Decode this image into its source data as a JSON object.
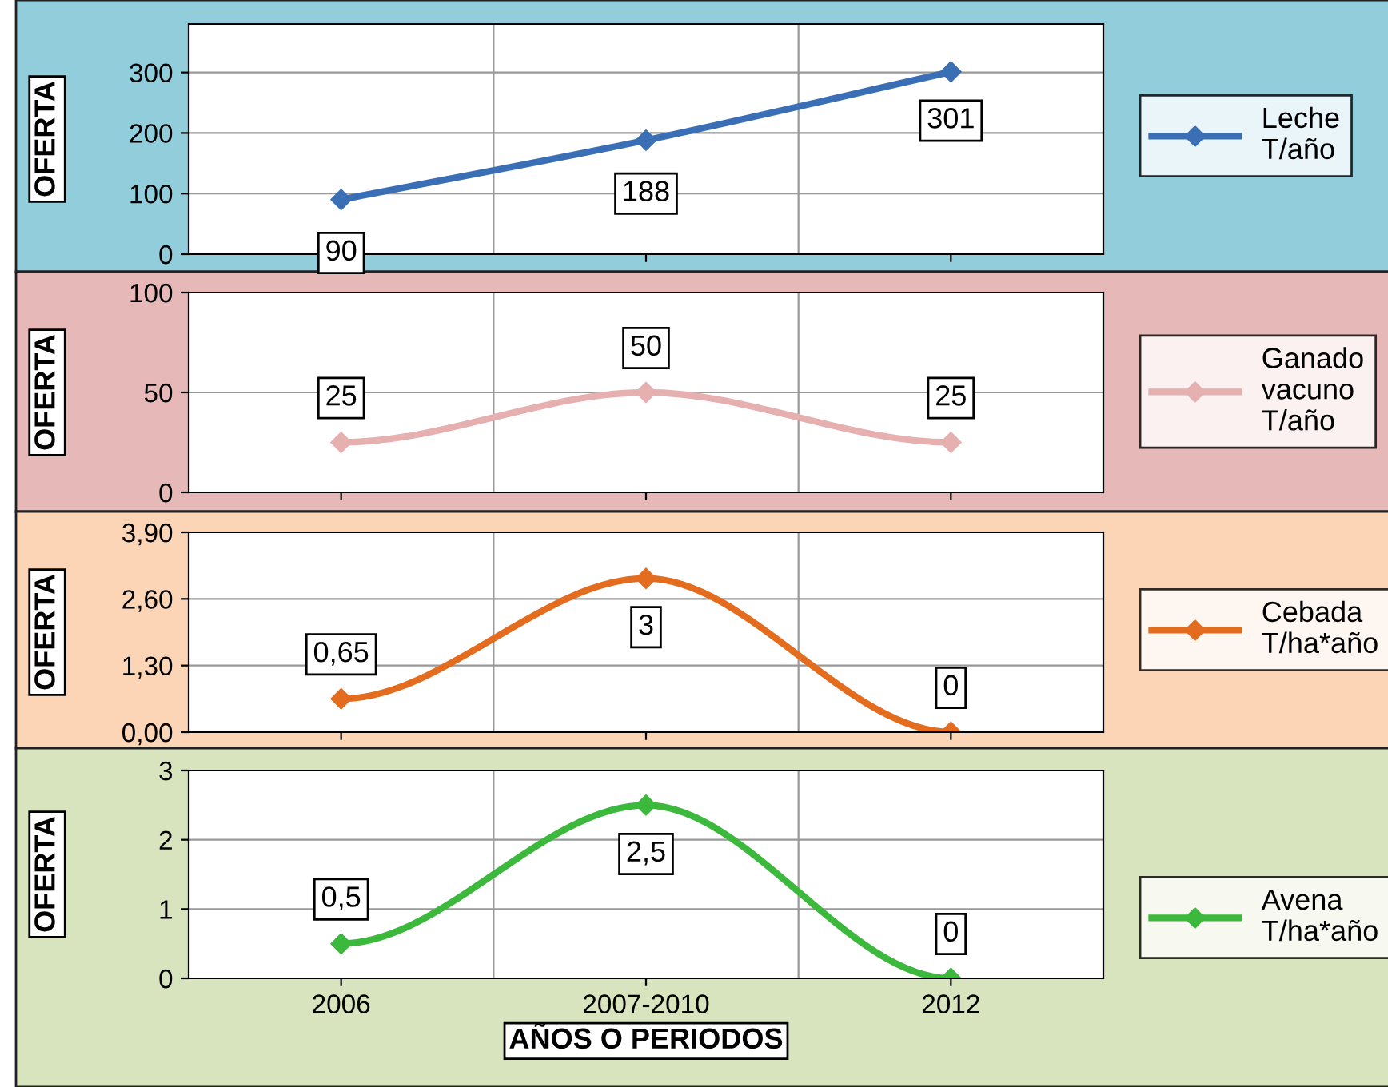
{
  "chart_data": [
    {
      "type": "line",
      "categories": [
        null,
        null,
        null
      ],
      "ylabel": "OFERTA",
      "ylim": [
        0,
        380
      ],
      "yticks": [
        0,
        100,
        200,
        300
      ],
      "grid": true,
      "legend": "right",
      "marker": "diamond",
      "tick_labels": "y",
      "data_labels": true,
      "series": [
        {
          "name": "Leche T/año",
          "color": "#3a6fb5",
          "values": [
            90,
            188,
            301
          ]
        }
      ]
    },
    {
      "type": "line",
      "categories": [
        null,
        null,
        null
      ],
      "ylabel": "OFERTA",
      "ylim": [
        0,
        100
      ],
      "yticks": [
        0,
        50,
        100
      ],
      "grid": true,
      "legend": "right",
      "marker": "diamond",
      "tick_labels": "y",
      "data_labels": true,
      "series": [
        {
          "name": "Ganado vacuno T/año",
          "color": "#e6b0b0",
          "values": [
            25,
            50,
            25
          ]
        }
      ]
    },
    {
      "type": "line",
      "categories": [
        null,
        null,
        null
      ],
      "ylabel": "OFERTA",
      "ylim": [
        0,
        3.9
      ],
      "yticks": [
        {
          "value": 0,
          "label": "0,00"
        },
        {
          "value": 1.3,
          "label": "1,30"
        },
        {
          "value": 2.6,
          "label": "2,60"
        },
        {
          "value": 3.9,
          "label": "3,90"
        }
      ],
      "grid": true,
      "legend": "right",
      "marker": "diamond",
      "tick_labels": "y",
      "series": [
        {
          "name": "Cebada T/ha*año",
          "color": "#e46c1f",
          "values": [
            0.65,
            3,
            0
          ],
          "value_labels": [
            "0,65",
            "3",
            "0"
          ]
        }
      ]
    },
    {
      "type": "line",
      "categories": [
        "2006",
        "2007-2010",
        "2012"
      ],
      "ylabel": "OFERTA",
      "xlabel": "AÑOS O PERIODOS",
      "ylim": [
        0,
        3
      ],
      "yticks": [
        0,
        1,
        2,
        3
      ],
      "grid": true,
      "legend": "right",
      "marker": "diamond",
      "series": [
        {
          "name": "Avena T/ha*año",
          "color": "#3cb93c",
          "values": [
            0.5,
            2.5,
            0
          ],
          "value_labels": [
            "0,5",
            "2,5",
            "0"
          ]
        }
      ]
    }
  ]
}
